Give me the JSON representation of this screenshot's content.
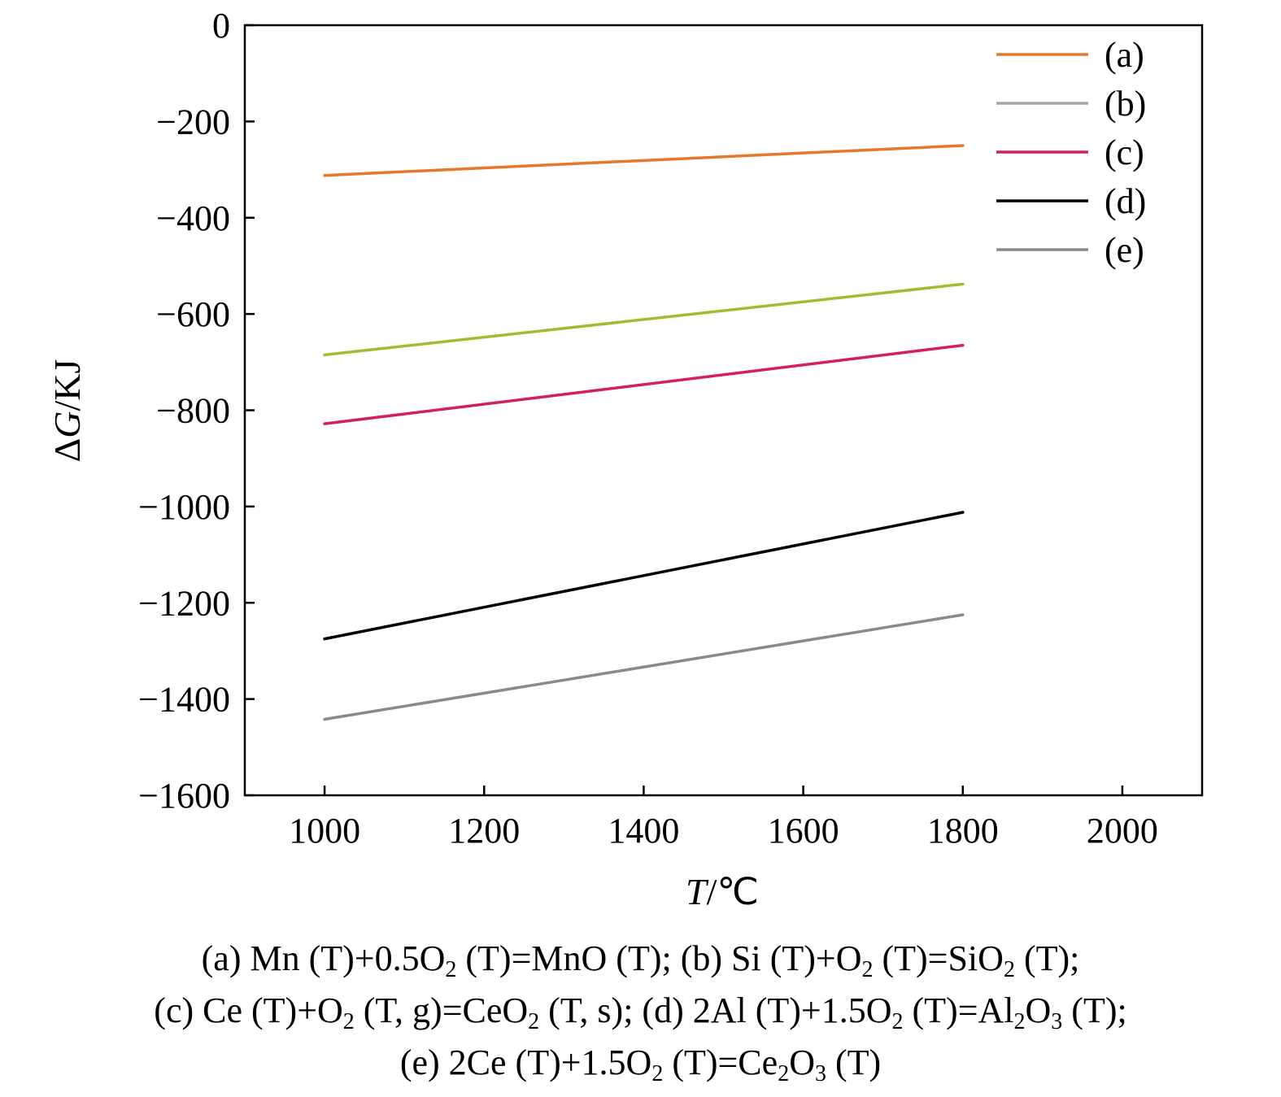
{
  "chart_data": {
    "type": "line",
    "xlabel": "T/℃",
    "ylabel": "ΔG/KJ",
    "xlim": [
      900,
      2100
    ],
    "ylim": [
      -1600,
      0
    ],
    "xticks": [
      1000,
      1200,
      1400,
      1600,
      1800,
      2000
    ],
    "yticks": [
      0,
      -200,
      -400,
      -600,
      -800,
      -1000,
      -1200,
      -1400,
      -1600
    ],
    "grid": false,
    "legend_position": "top-right",
    "series": [
      {
        "name": "(a)",
        "color": "#e8772a",
        "x": [
          1000,
          1800
        ],
        "y": [
          -312,
          -250
        ]
      },
      {
        "name": "(b)",
        "color": "#a8b830",
        "legend_color": "#a6a6a6",
        "x": [
          1000,
          1800
        ],
        "y": [
          -685,
          -538
        ]
      },
      {
        "name": "(c)",
        "color": "#d41f5c",
        "x": [
          1000,
          1800
        ],
        "y": [
          -828,
          -665
        ]
      },
      {
        "name": "(d)",
        "color": "#000000",
        "x": [
          1000,
          1800
        ],
        "y": [
          -1275,
          -1012
        ]
      },
      {
        "name": "(e)",
        "color": "#8a8a8a",
        "x": [
          1000,
          1800
        ],
        "y": [
          -1442,
          -1225
        ]
      }
    ]
  },
  "caption": {
    "lines": [
      [
        {
          "t": "(a) Mn (T)+0.5O"
        },
        {
          "sub": "2"
        },
        {
          "t": " (T)=MnO (T); (b) Si (T)+O"
        },
        {
          "sub": "2"
        },
        {
          "t": " (T)=SiO"
        },
        {
          "sub": "2"
        },
        {
          "t": " (T);"
        }
      ],
      [
        {
          "t": "(c) Ce (T)+O"
        },
        {
          "sub": "2"
        },
        {
          "t": " (T, g)=CeO"
        },
        {
          "sub": "2"
        },
        {
          "t": " (T, s); (d) 2Al (T)+1.5O"
        },
        {
          "sub": "2"
        },
        {
          "t": " (T)=Al"
        },
        {
          "sub": "2"
        },
        {
          "t": "O"
        },
        {
          "sub": "3"
        },
        {
          "t": " (T);"
        }
      ],
      [
        {
          "t": "(e) 2Ce (T)+1.5O"
        },
        {
          "sub": "2"
        },
        {
          "t": " (T)=Ce"
        },
        {
          "sub": "2"
        },
        {
          "t": "O"
        },
        {
          "sub": "3"
        },
        {
          "t": " (T)"
        }
      ]
    ]
  }
}
